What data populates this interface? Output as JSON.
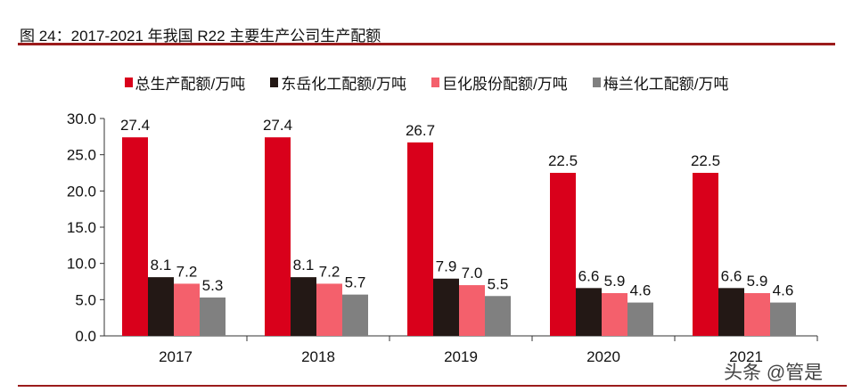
{
  "title": "图 24：2017-2021 年我国 R22 主要生产公司生产配额",
  "watermark": "头条 @管是",
  "chart_data": {
    "type": "bar",
    "title": "",
    "categories": [
      "2017",
      "2018",
      "2019",
      "2020",
      "2021"
    ],
    "series": [
      {
        "name": "总生产配额/万吨",
        "color": "#d9001b",
        "values": [
          27.4,
          27.4,
          26.7,
          22.5,
          22.5
        ]
      },
      {
        "name": "东岳化工配额/万吨",
        "color": "#231815",
        "values": [
          8.1,
          8.1,
          7.9,
          6.6,
          6.6
        ]
      },
      {
        "name": "巨化股份配额/万吨",
        "color": "#f4606c",
        "values": [
          7.2,
          7.2,
          7.0,
          5.9,
          5.9
        ]
      },
      {
        "name": "梅兰化工配额/万吨",
        "color": "#808080",
        "values": [
          5.3,
          5.7,
          5.5,
          4.6,
          4.6
        ]
      }
    ],
    "yticks": [
      "0.0",
      "5.0",
      "10.0",
      "15.0",
      "20.0",
      "25.0",
      "30.0"
    ],
    "ylim": [
      0,
      30
    ],
    "legend": "top",
    "grid": false
  }
}
